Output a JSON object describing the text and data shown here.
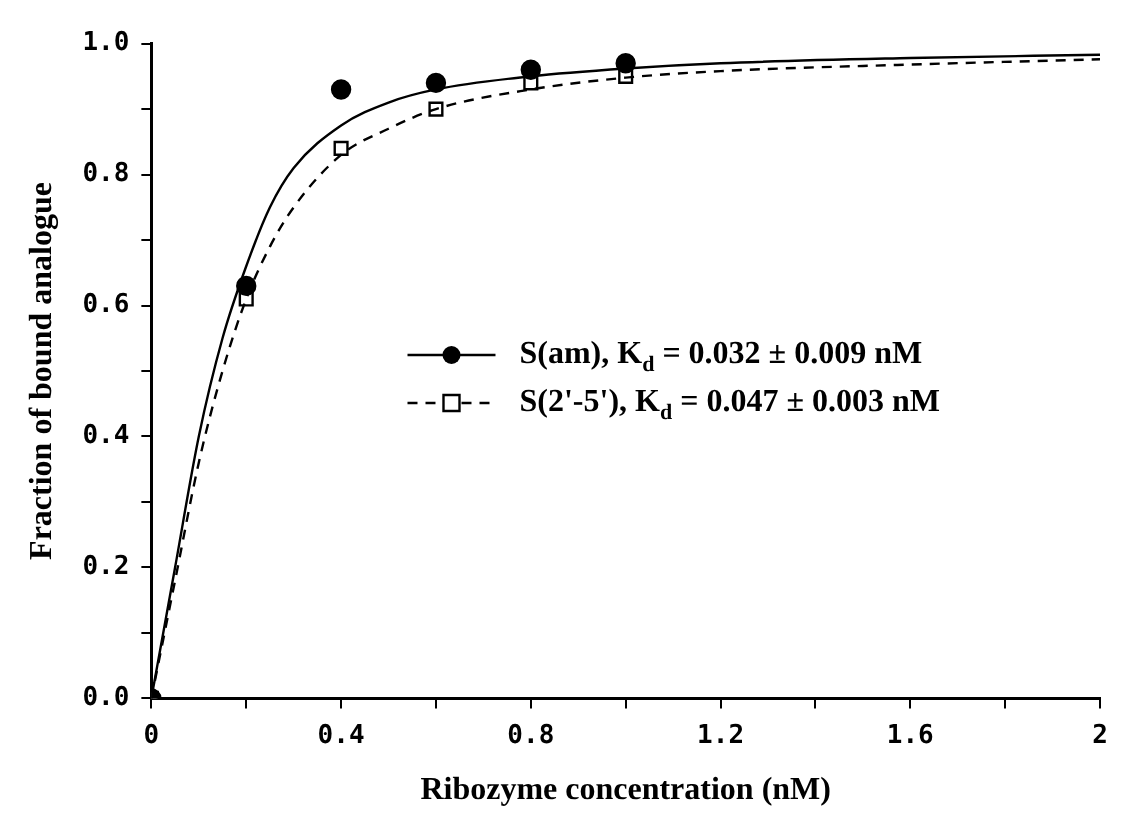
{
  "chart_data": {
    "type": "scatter",
    "xlabel": "Ribozyme concentration (nM)",
    "ylabel": "Fraction of bound analogue",
    "xlim": [
      0,
      2
    ],
    "xticks": [
      {
        "value": 0,
        "label": "0"
      },
      {
        "value": 0.2,
        "label": null
      },
      {
        "value": 0.4,
        "label": "0.4"
      },
      {
        "value": 0.6,
        "label": null
      },
      {
        "value": 0.8,
        "label": "0.8"
      },
      {
        "value": 1.0,
        "label": null
      },
      {
        "value": 1.2,
        "label": "1.2"
      },
      {
        "value": 1.4,
        "label": null
      },
      {
        "value": 1.6,
        "label": "1.6"
      },
      {
        "value": 1.8,
        "label": null
      },
      {
        "value": 2,
        "label": "2"
      }
    ],
    "ylim": [
      0,
      1.0
    ],
    "yticks": [
      {
        "value": 0,
        "label": "0.0"
      },
      {
        "value": 0.1,
        "label": null
      },
      {
        "value": 0.2,
        "label": "0.2"
      },
      {
        "value": 0.3,
        "label": null
      },
      {
        "value": 0.4,
        "label": "0.4"
      },
      {
        "value": 0.5,
        "label": null
      },
      {
        "value": 0.6,
        "label": "0.6"
      },
      {
        "value": 0.7,
        "label": null
      },
      {
        "value": 0.8,
        "label": "0.8"
      },
      {
        "value": 0.9,
        "label": null
      },
      {
        "value": 1.0,
        "label": "1.0"
      }
    ],
    "grid": false,
    "legend": "right",
    "series": [
      {
        "name": "S(am), K$_{d}$ = 0.032 ± 0.009 nM",
        "type": "line",
        "line_style": "solid",
        "color": "#000000",
        "x": [
          0,
          0.05,
          0.1,
          0.15,
          0.2,
          0.25,
          0.3,
          0.4,
          0.5,
          0.6,
          0.8,
          1.0,
          1.2,
          1.6,
          2.0
        ],
        "values": [
          0,
          0.2,
          0.4,
          0.55,
          0.66,
          0.75,
          0.81,
          0.875,
          0.91,
          0.93,
          0.95,
          0.962,
          0.97,
          0.978,
          0.983
        ]
      },
      {
        "type": "scatter",
        "marker": "circle",
        "color": "#000000",
        "x": [
          0,
          0.2,
          0.4,
          0.6,
          0.8,
          1.0
        ],
        "values": [
          0,
          0.63,
          0.93,
          0.94,
          0.96,
          0.97
        ]
      },
      {
        "name": "S(2'-5'), K$_{d}$ = 0.047 ± 0.003 nM",
        "type": "line",
        "line_style": "dashed",
        "color": "#000000",
        "x": [
          0,
          0.05,
          0.1,
          0.15,
          0.2,
          0.25,
          0.3,
          0.4,
          0.5,
          0.6,
          0.8,
          1.0,
          1.2,
          1.6,
          2.0
        ],
        "values": [
          0,
          0.18,
          0.36,
          0.5,
          0.61,
          0.69,
          0.75,
          0.83,
          0.87,
          0.9,
          0.93,
          0.948,
          0.958,
          0.968,
          0.976
        ]
      },
      {
        "type": "scatter",
        "marker": "square",
        "color": "#000000",
        "x": [
          0,
          0.2,
          0.4,
          0.6,
          0.8,
          1.0
        ],
        "values": [
          0,
          0.61,
          0.84,
          0.9,
          0.94,
          0.95
        ]
      }
    ]
  }
}
